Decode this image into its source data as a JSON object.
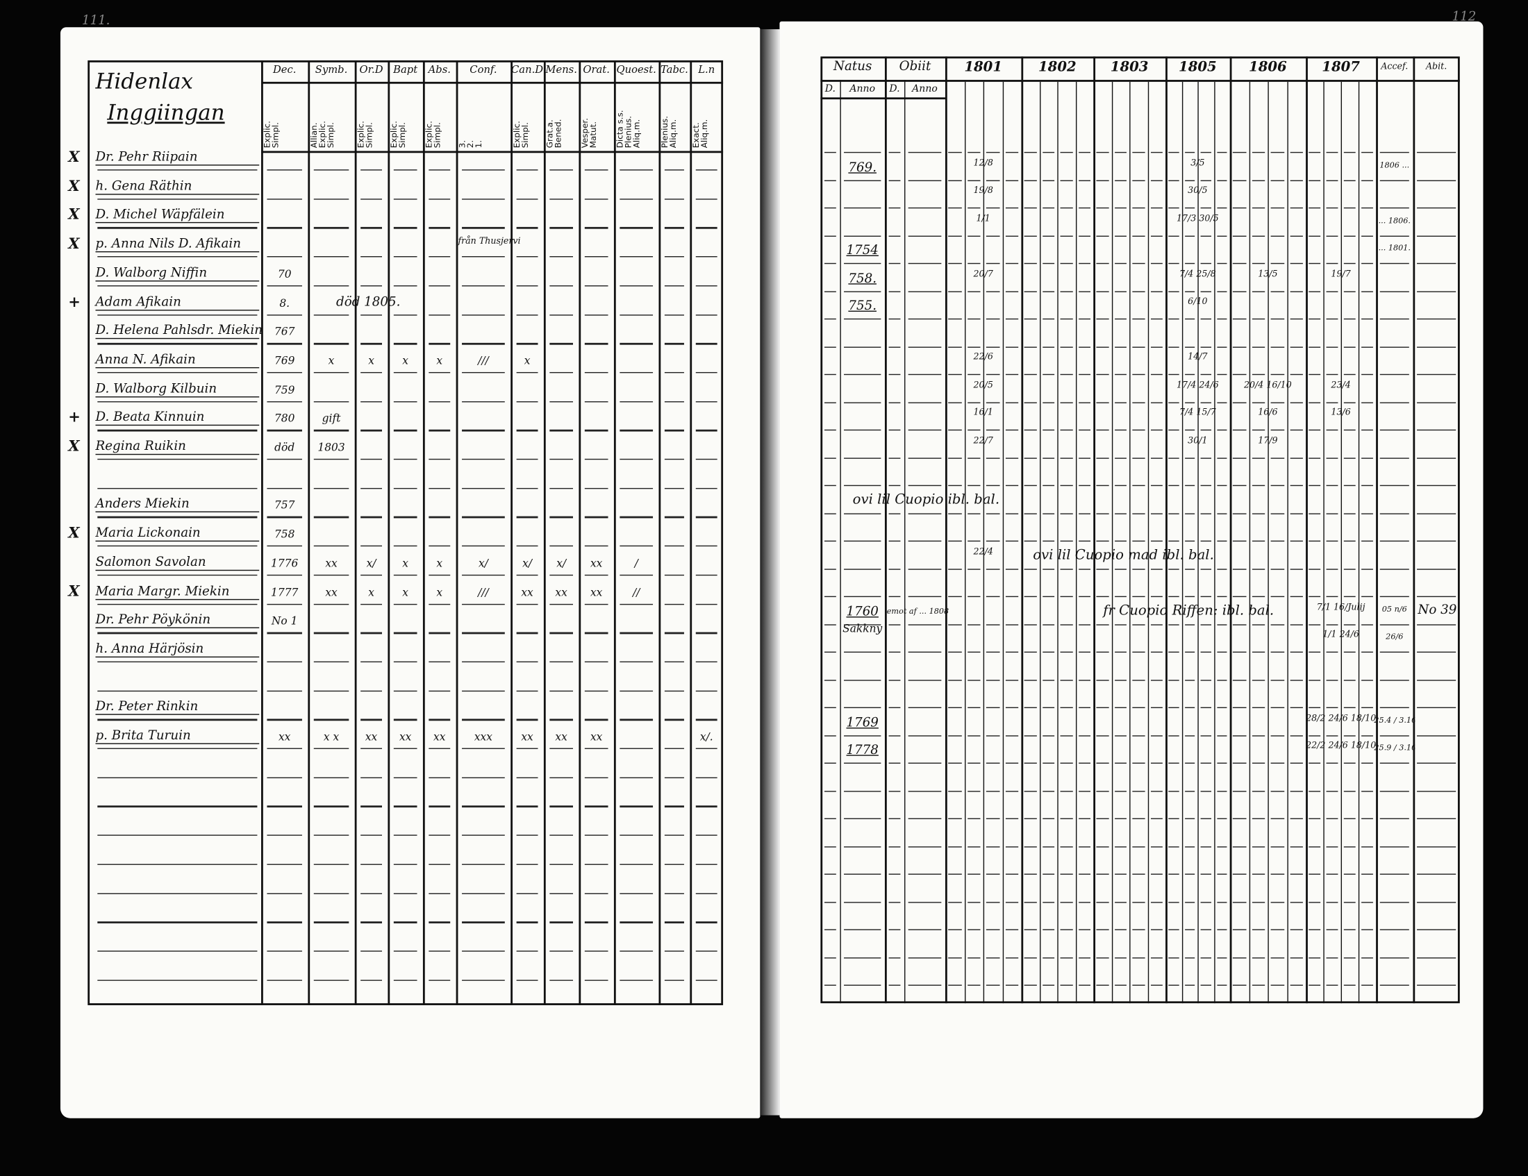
{
  "left_page": {
    "page_number": "111.",
    "title_line1": "Hidenlax",
    "title_line2": "Inggiingan",
    "columns": [
      {
        "header": "Dec.",
        "sub": "Explic.\nSimpl."
      },
      {
        "header": "Symb.",
        "sub": "Allian.\nExplic.\nSimpl."
      },
      {
        "header": "Or.D",
        "sub": "Explic.\nSimpl."
      },
      {
        "header": "Bapt",
        "sub": "Explic.\nSimpl."
      },
      {
        "header": "Abs.",
        "sub": "Explic.\nSimpl."
      },
      {
        "header": "Conf.",
        "sub": "3.\n2.\n1."
      },
      {
        "header": "Can.D",
        "sub": "Explic.\nSimpl."
      },
      {
        "header": "Mens.",
        "sub": "Grat.a.\nBened."
      },
      {
        "header": "Orat.",
        "sub": "Vesper.\nMatut."
      },
      {
        "header": "Quoest.",
        "sub": "Dicta s.s.\nPlenius.\nAliq.m."
      },
      {
        "header": "Tabc.",
        "sub": "Plenius.\nAliq.m."
      },
      {
        "header": "L.n",
        "sub": "Exact.\nAliq.m."
      }
    ],
    "rows": [
      {
        "row": 0,
        "mark": "X",
        "name": "Dr. Pehr Riipain",
        "cells": [
          "",
          "",
          "",
          "",
          "",
          "",
          "",
          "",
          "",
          "",
          "",
          ""
        ]
      },
      {
        "row": 1,
        "mark": "X",
        "name": "h. Gena Räthin",
        "cells": [
          "",
          "",
          "",
          "",
          "",
          "",
          "",
          "",
          "",
          "",
          "",
          ""
        ]
      },
      {
        "row": 2,
        "mark": "X",
        "name": "D. Michel Wäpfälein",
        "cells": [
          "",
          "",
          "",
          "",
          "",
          "",
          "",
          "",
          "",
          "",
          "",
          ""
        ]
      },
      {
        "row": 3,
        "mark": "X",
        "name": "p. Anna Nils D. Afikain",
        "cells": [
          "",
          "",
          "",
          "",
          "",
          "",
          "",
          "",
          "",
          "",
          "",
          ""
        ],
        "note": "från Thusjervi"
      },
      {
        "row": 4,
        "mark": "",
        "name": "D. Walborg Niffin",
        "cells": [
          "70",
          "",
          "",
          "",
          "",
          "",
          "",
          "",
          "",
          "",
          "",
          ""
        ]
      },
      {
        "row": 5,
        "mark": "+",
        "name": "Adam Afikain",
        "cells": [
          "8.",
          "",
          "",
          "",
          "",
          "",
          "",
          "",
          "",
          "",
          "",
          ""
        ],
        "note": "död 1805."
      },
      {
        "row": 6,
        "mark": "",
        "name": "D. Helena Pahlsdr. Miekin",
        "cells": [
          "767",
          "",
          "",
          "",
          "",
          "",
          "",
          "",
          "",
          "",
          "",
          ""
        ]
      },
      {
        "row": 7,
        "mark": "",
        "name": "Anna N. Afikain",
        "cells": [
          "769",
          "x",
          "x",
          "x",
          "x",
          "///",
          "x",
          "",
          "",
          "",
          "",
          ""
        ]
      },
      {
        "row": 8,
        "mark": "",
        "name": "D. Walborg Kilbuin",
        "cells": [
          "759",
          "",
          "",
          "",
          "",
          "",
          "",
          "",
          "",
          "",
          "",
          ""
        ]
      },
      {
        "row": 9,
        "mark": "+",
        "name": "D. Beata Kinnuin",
        "cells": [
          "780",
          "gift",
          "",
          "",
          "",
          "",
          "",
          "",
          "",
          "",
          "",
          ""
        ]
      },
      {
        "row": 10,
        "mark": "X",
        "name": "Regina Ruikin",
        "cells": [
          "död",
          "1803",
          "",
          "",
          "",
          "",
          "",
          "",
          "",
          "",
          "",
          ""
        ]
      },
      {
        "row": 12,
        "mark": "",
        "name": "Anders Miekin",
        "cells": [
          "757",
          "",
          "",
          "",
          "",
          "",
          "",
          "",
          "",
          "",
          "",
          ""
        ]
      },
      {
        "row": 13,
        "mark": "X",
        "name": "Maria Lickonain",
        "cells": [
          "758",
          "",
          "",
          "",
          "",
          "",
          "",
          "",
          "",
          "",
          "",
          ""
        ]
      },
      {
        "row": 14,
        "mark": "",
        "name": "Salomon Savolan",
        "cells": [
          "1776",
          "xx",
          "x/",
          "x",
          "x",
          "x/",
          "x/",
          "x/",
          "xx",
          "/",
          "",
          ""
        ]
      },
      {
        "row": 15,
        "mark": "X",
        "name": "Maria Margr. Miekin",
        "cells": [
          "1777",
          "xx",
          "x",
          "x",
          "x",
          "///",
          "xx",
          "xx",
          "xx",
          "//",
          "",
          ""
        ]
      },
      {
        "row": 16,
        "mark": "",
        "name": "Dr. Pehr Pöykönin",
        "cells": [
          "No 1",
          "",
          "",
          "",
          "",
          "",
          "",
          "",
          "",
          "",
          "",
          ""
        ]
      },
      {
        "row": 17,
        "mark": "",
        "name": "h. Anna Härjösin",
        "cells": [
          "",
          "",
          "",
          "",
          "",
          "",
          "",
          "",
          "",
          "",
          "",
          ""
        ]
      },
      {
        "row": 19,
        "mark": "",
        "name": "Dr. Peter Rinkin",
        "cells": [
          "",
          "",
          "",
          "",
          "",
          "",
          "",
          "",
          "",
          "",
          "",
          ""
        ]
      },
      {
        "row": 20,
        "mark": "",
        "name": "p. Brita Turuin",
        "cells": [
          "xx",
          "x x",
          "xx",
          "xx",
          "xx",
          "xxx",
          "xx",
          "xx",
          "xx",
          "",
          "",
          "x/."
        ]
      }
    ]
  },
  "right_page": {
    "page_number": "112",
    "header_groups": [
      {
        "label": "Natus",
        "subs": [
          "D.",
          "Anno"
        ]
      },
      {
        "label": "Obiit",
        "subs": [
          "D.",
          "Anno"
        ]
      }
    ],
    "years": [
      "1801",
      "1802",
      "1803",
      "1805",
      "1806",
      "1807"
    ],
    "accef": "Accef.",
    "abit": "Abit.",
    "rows": [
      {
        "row": 1,
        "natus_anno": "769.",
        "years": [
          "12/8",
          "",
          "",
          "3/5",
          "",
          ""
        ],
        "accef": "1806 ..."
      },
      {
        "row": 2,
        "natus_anno": "",
        "years": [
          "19/8",
          "",
          "",
          "30/5",
          "",
          ""
        ]
      },
      {
        "row": 3,
        "natus_anno": "",
        "years": [
          "1/1",
          "",
          "",
          "17/3 30/5",
          "",
          ""
        ],
        "accef": "... 1806."
      },
      {
        "row": 4,
        "natus_anno": "1754",
        "years": [
          "",
          "",
          "",
          "",
          "",
          ""
        ],
        "accef": "... 1801."
      },
      {
        "row": 5,
        "natus_anno": "758.",
        "years": [
          "20/7",
          "",
          "",
          "7/4 25/8",
          "13/5",
          "19/7"
        ]
      },
      {
        "row": 6,
        "natus_anno": "755.",
        "years": [
          "",
          "",
          "",
          "6/10",
          "",
          ""
        ]
      },
      {
        "row": 8,
        "natus_anno": "",
        "years": [
          "22/6",
          "",
          "",
          "14/7",
          "",
          ""
        ]
      },
      {
        "row": 9,
        "natus_anno": "",
        "years": [
          "20/5",
          "",
          "",
          "17/4 24/6",
          "20/4 16/10",
          "23/4"
        ]
      },
      {
        "row": 10,
        "natus_anno": "",
        "years": [
          "16/1",
          "",
          "",
          "7/4 15/7",
          "16/6",
          "13/6"
        ]
      },
      {
        "row": 11,
        "natus_anno": "",
        "years": [
          "22/7",
          "",
          "",
          "30/1",
          "17/9",
          ""
        ]
      },
      {
        "row": 13,
        "note": "ovi lil Cuopio ibl. bal."
      },
      {
        "row": 15,
        "years": [
          "22/4",
          "",
          "",
          "",
          "",
          ""
        ],
        "note": "ovi lil Cuopio mad ibl. bal."
      },
      {
        "row": 17,
        "natus_anno": "1760",
        "natus_place": "Sakkny",
        "obiit_note": "emot af ... 1808",
        "note": "fr Cuopio Riffen: ibl. bal.",
        "years": [
          "",
          "",
          "",
          "",
          "",
          "7/1 16/Julij"
        ],
        "accef": "05 n/6",
        "abit": "No 39."
      },
      {
        "row": 18,
        "years": [
          "",
          "",
          "",
          "",
          "",
          "1/1 24/6"
        ],
        "accef": "26/6"
      },
      {
        "row": 21,
        "natus_anno": "1769",
        "years": [
          "",
          "",
          "",
          "",
          "",
          "28/2 24/6 18/10"
        ],
        "accef": "25.4 / 3.10"
      },
      {
        "row": 22,
        "natus_anno": "1778",
        "years": [
          "",
          "",
          "",
          "",
          "",
          "22/2 24/6 18/10"
        ],
        "accef": "25.9 / 3.10."
      }
    ]
  }
}
